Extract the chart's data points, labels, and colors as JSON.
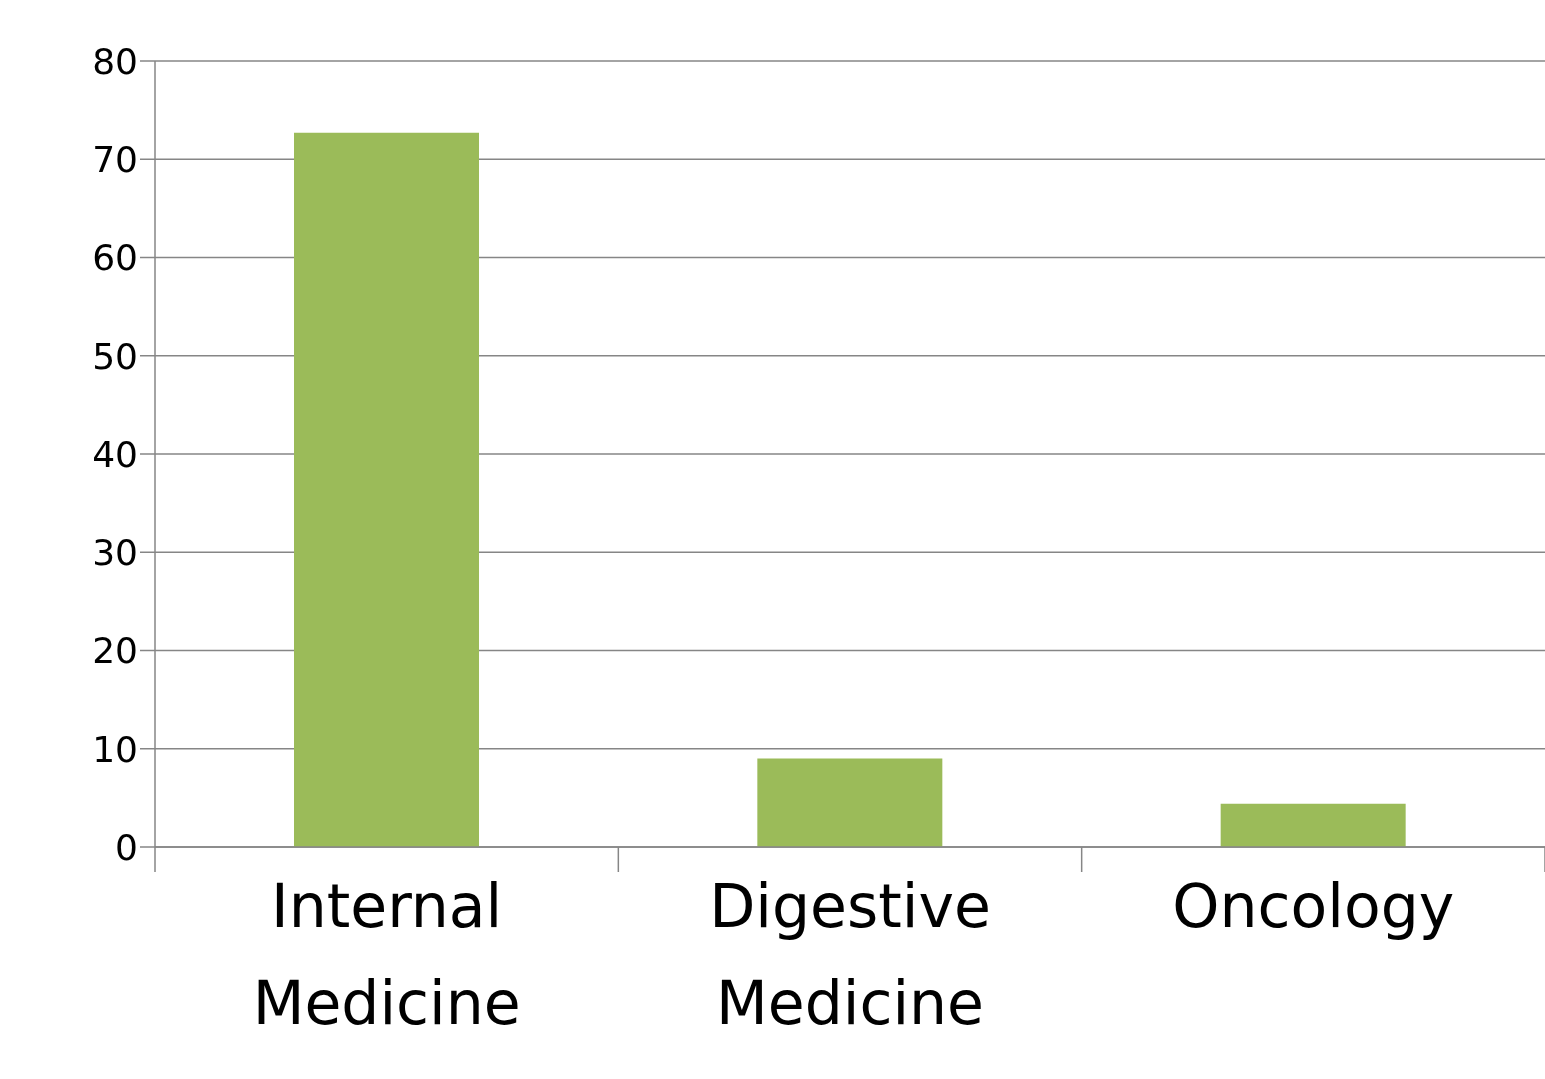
{
  "chart_data": {
    "type": "bar",
    "categories": [
      "Internal Medicine",
      "Digestive Medicine",
      "Oncology"
    ],
    "values": [
      72.7,
      9,
      4.4
    ],
    "color": "#9bbb59",
    "ylim": [
      0,
      80
    ],
    "yticks": [
      0,
      10,
      20,
      30,
      40,
      50,
      60,
      70,
      80
    ],
    "grid": "y"
  }
}
